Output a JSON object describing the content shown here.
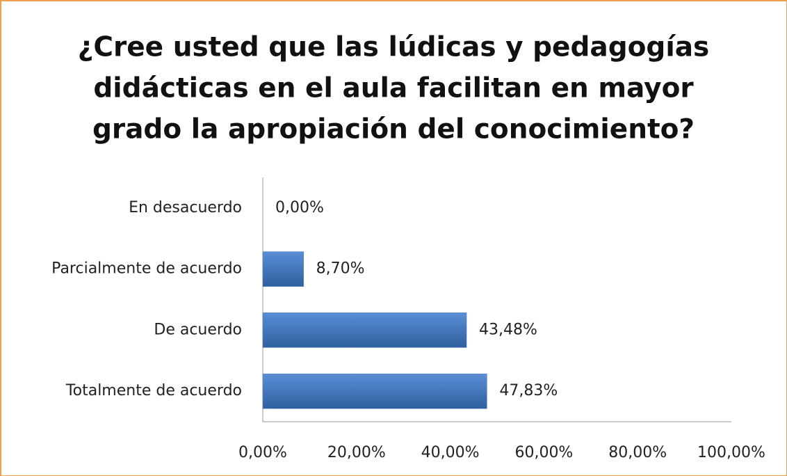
{
  "chart_data": {
    "type": "bar",
    "orientation": "horizontal",
    "title": [
      "¿Cree usted que las lúdicas y pedagogías",
      "didácticas en el aula facilitan en mayor",
      "grado la apropiación del conocimiento?"
    ],
    "categories": [
      "En desacuerdo",
      "Parcialmente de acuerdo",
      "De acuerdo",
      "Totalmente de acuerdo"
    ],
    "values": [
      0,
      8.7,
      43.48,
      47.83
    ],
    "value_labels": [
      "0,00%",
      "8,70%",
      "43,48%",
      "47,83%"
    ],
    "color": "#4a7cc0",
    "xlim": [
      0,
      100
    ],
    "xticks": [
      {
        "value": 0,
        "label": "0,00%"
      },
      {
        "value": 20,
        "label": "20,00%"
      },
      {
        "value": 40,
        "label": "40,00%"
      },
      {
        "value": 60,
        "label": "60,00%"
      },
      {
        "value": 80,
        "label": "80,00%"
      },
      {
        "value": 100,
        "label": "100,00%"
      }
    ],
    "grid": false
  }
}
